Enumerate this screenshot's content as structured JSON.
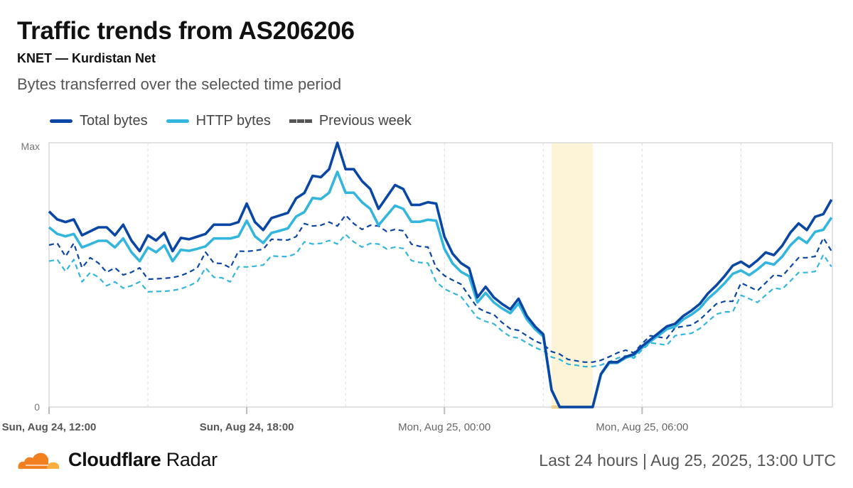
{
  "header": {
    "title": "Traffic trends from AS206206",
    "subtitle": "KNET — Kurdistan Net",
    "description": "Bytes transferred over the selected time period"
  },
  "footer": {
    "brand_bold": "Cloudflare",
    "brand_light": "Radar",
    "range": "Last 24 hours",
    "separator": "|",
    "timestamp": "Aug 25, 2025, 13:00 UTC"
  },
  "colors": {
    "total": "#0a47a5",
    "http": "#33b6dd",
    "previous": "#555555",
    "highlight": "#fdf3d6",
    "highlight_line": "#f9c74f",
    "grid": "#d9d9d9"
  },
  "chart_data": {
    "type": "line",
    "title": "Traffic trends from AS206206",
    "ylabel": "",
    "xlabel": "",
    "y_ticks": [
      "0",
      "Max"
    ],
    "ylim": [
      0,
      1
    ],
    "x_tick_labels": [
      "Sun, Aug 24, 12:00",
      "Sun, Aug 24, 18:00",
      "Mon, Aug 25, 00:00",
      "Mon, Aug 25, 06:00"
    ],
    "x_tick_times": [
      "12:00",
      "18:00",
      "00:00",
      "06:00"
    ],
    "x_tick_bold": [
      true,
      true,
      false,
      false
    ],
    "x_minor_grid": [
      "15:00",
      "21:00",
      "03:00",
      "09:00"
    ],
    "grid": true,
    "legend_position": "top-left",
    "highlight_range": [
      "03:15",
      "04:30"
    ],
    "x": [
      "12:00",
      "12:15",
      "12:30",
      "12:45",
      "13:00",
      "13:15",
      "13:30",
      "13:45",
      "14:00",
      "14:15",
      "14:30",
      "14:45",
      "15:00",
      "15:15",
      "15:30",
      "15:45",
      "16:00",
      "16:15",
      "16:30",
      "16:45",
      "17:00",
      "17:15",
      "17:30",
      "17:45",
      "18:00",
      "18:15",
      "18:30",
      "18:45",
      "19:00",
      "19:15",
      "19:30",
      "19:45",
      "20:00",
      "20:15",
      "20:30",
      "20:45",
      "21:00",
      "21:15",
      "21:30",
      "21:45",
      "22:00",
      "22:15",
      "22:30",
      "22:45",
      "23:00",
      "23:15",
      "23:30",
      "23:45",
      "00:00",
      "00:15",
      "00:30",
      "00:45",
      "01:00",
      "01:15",
      "01:30",
      "01:45",
      "02:00",
      "02:15",
      "02:30",
      "02:45",
      "03:00",
      "03:15",
      "03:30",
      "03:45",
      "04:00",
      "04:15",
      "04:30",
      "04:45",
      "05:00",
      "05:15",
      "05:30",
      "05:45",
      "06:00",
      "06:15",
      "06:30",
      "06:45",
      "07:00",
      "07:15",
      "07:30",
      "07:45",
      "08:00",
      "08:15",
      "08:30",
      "08:45",
      "09:00",
      "09:15",
      "09:30",
      "09:45",
      "10:00",
      "10:15",
      "10:30",
      "10:45",
      "11:00",
      "11:15",
      "11:30",
      "11:45"
    ],
    "series": [
      {
        "name": "Total bytes",
        "style": "solid",
        "color": "#0a47a5",
        "values": [
          0.74,
          0.71,
          0.7,
          0.71,
          0.65,
          0.665,
          0.68,
          0.68,
          0.65,
          0.69,
          0.63,
          0.59,
          0.65,
          0.63,
          0.66,
          0.59,
          0.64,
          0.635,
          0.645,
          0.655,
          0.69,
          0.69,
          0.69,
          0.7,
          0.77,
          0.7,
          0.67,
          0.715,
          0.725,
          0.735,
          0.79,
          0.81,
          0.875,
          0.87,
          0.9,
          1.0,
          0.9,
          0.9,
          0.855,
          0.825,
          0.75,
          0.795,
          0.84,
          0.825,
          0.765,
          0.765,
          0.775,
          0.77,
          0.645,
          0.58,
          0.545,
          0.525,
          0.415,
          0.455,
          0.415,
          0.39,
          0.37,
          0.41,
          0.345,
          0.305,
          0.275,
          0.065,
          0,
          0,
          0,
          0,
          0,
          0.125,
          0.17,
          0.17,
          0.19,
          0.2,
          0.23,
          0.255,
          0.28,
          0.305,
          0.315,
          0.345,
          0.365,
          0.39,
          0.43,
          0.46,
          0.495,
          0.535,
          0.55,
          0.53,
          0.555,
          0.585,
          0.575,
          0.61,
          0.66,
          0.695,
          0.67,
          0.72,
          0.73,
          0.785
        ]
      },
      {
        "name": "HTTP bytes",
        "style": "solid",
        "color": "#33b6dd",
        "values": [
          0.68,
          0.655,
          0.646,
          0.655,
          0.604,
          0.616,
          0.629,
          0.629,
          0.604,
          0.638,
          0.586,
          0.552,
          0.604,
          0.586,
          0.612,
          0.552,
          0.595,
          0.591,
          0.599,
          0.608,
          0.638,
          0.638,
          0.638,
          0.646,
          0.705,
          0.646,
          0.621,
          0.659,
          0.667,
          0.676,
          0.721,
          0.738,
          0.791,
          0.787,
          0.811,
          0.89,
          0.811,
          0.811,
          0.775,
          0.75,
          0.688,
          0.725,
          0.762,
          0.75,
          0.701,
          0.701,
          0.709,
          0.705,
          0.599,
          0.543,
          0.512,
          0.495,
          0.396,
          0.432,
          0.396,
          0.373,
          0.355,
          0.392,
          0.332,
          0.295,
          0.267,
          0.065,
          0,
          0,
          0,
          0,
          0,
          0.123,
          0.167,
          0.167,
          0.186,
          0.196,
          0.224,
          0.248,
          0.271,
          0.295,
          0.304,
          0.332,
          0.35,
          0.373,
          0.41,
          0.437,
          0.468,
          0.504,
          0.517,
          0.499,
          0.521,
          0.547,
          0.539,
          0.569,
          0.612,
          0.642,
          0.621,
          0.663,
          0.671,
          0.717
        ]
      },
      {
        "name": "Previous week",
        "style": "dashed",
        "color": "#0a47a5",
        "legend_group": "Previous week",
        "values": [
          0.613,
          0.62,
          0.57,
          0.62,
          0.527,
          0.565,
          0.545,
          0.51,
          0.527,
          0.5,
          0.51,
          0.527,
          0.484,
          0.485,
          0.487,
          0.49,
          0.497,
          0.51,
          0.527,
          0.586,
          0.545,
          0.543,
          0.527,
          0.59,
          0.589,
          0.592,
          0.597,
          0.635,
          0.633,
          0.632,
          0.645,
          0.694,
          0.685,
          0.688,
          0.7,
          0.685,
          0.726,
          0.694,
          0.672,
          0.688,
          0.685,
          0.664,
          0.672,
          0.667,
          0.616,
          0.608,
          0.605,
          0.527,
          0.497,
          0.48,
          0.465,
          0.42,
          0.376,
          0.36,
          0.35,
          0.32,
          0.296,
          0.29,
          0.27,
          0.25,
          0.237,
          0.21,
          0.2,
          0.18,
          0.175,
          0.17,
          0.17,
          0.177,
          0.19,
          0.205,
          0.215,
          0.205,
          0.24,
          0.27,
          0.265,
          0.26,
          0.3,
          0.305,
          0.31,
          0.33,
          0.36,
          0.39,
          0.4,
          0.4,
          0.47,
          0.455,
          0.44,
          0.47,
          0.5,
          0.495,
          0.53,
          0.565,
          0.565,
          0.57,
          0.64,
          0.59
        ]
      },
      {
        "name": "Previous week",
        "style": "dashed",
        "color": "#33b6dd",
        "legend_group": "Previous week",
        "values": [
          0.552,
          0.558,
          0.513,
          0.558,
          0.474,
          0.509,
          0.491,
          0.459,
          0.474,
          0.45,
          0.459,
          0.474,
          0.436,
          0.437,
          0.438,
          0.441,
          0.447,
          0.459,
          0.474,
          0.527,
          0.491,
          0.489,
          0.474,
          0.531,
          0.53,
          0.533,
          0.537,
          0.572,
          0.57,
          0.569,
          0.581,
          0.625,
          0.617,
          0.619,
          0.63,
          0.617,
          0.653,
          0.625,
          0.605,
          0.619,
          0.617,
          0.598,
          0.605,
          0.6,
          0.554,
          0.547,
          0.545,
          0.474,
          0.447,
          0.432,
          0.419,
          0.378,
          0.338,
          0.324,
          0.315,
          0.288,
          0.266,
          0.261,
          0.243,
          0.225,
          0.213,
          0.189,
          0.18,
          0.162,
          0.158,
          0.153,
          0.153,
          0.159,
          0.171,
          0.185,
          0.194,
          0.185,
          0.216,
          0.243,
          0.239,
          0.234,
          0.27,
          0.275,
          0.279,
          0.297,
          0.324,
          0.351,
          0.36,
          0.36,
          0.423,
          0.41,
          0.396,
          0.423,
          0.45,
          0.446,
          0.477,
          0.509,
          0.509,
          0.513,
          0.576,
          0.531
        ]
      }
    ],
    "legend": [
      "Total bytes",
      "HTTP bytes",
      "Previous week"
    ]
  }
}
